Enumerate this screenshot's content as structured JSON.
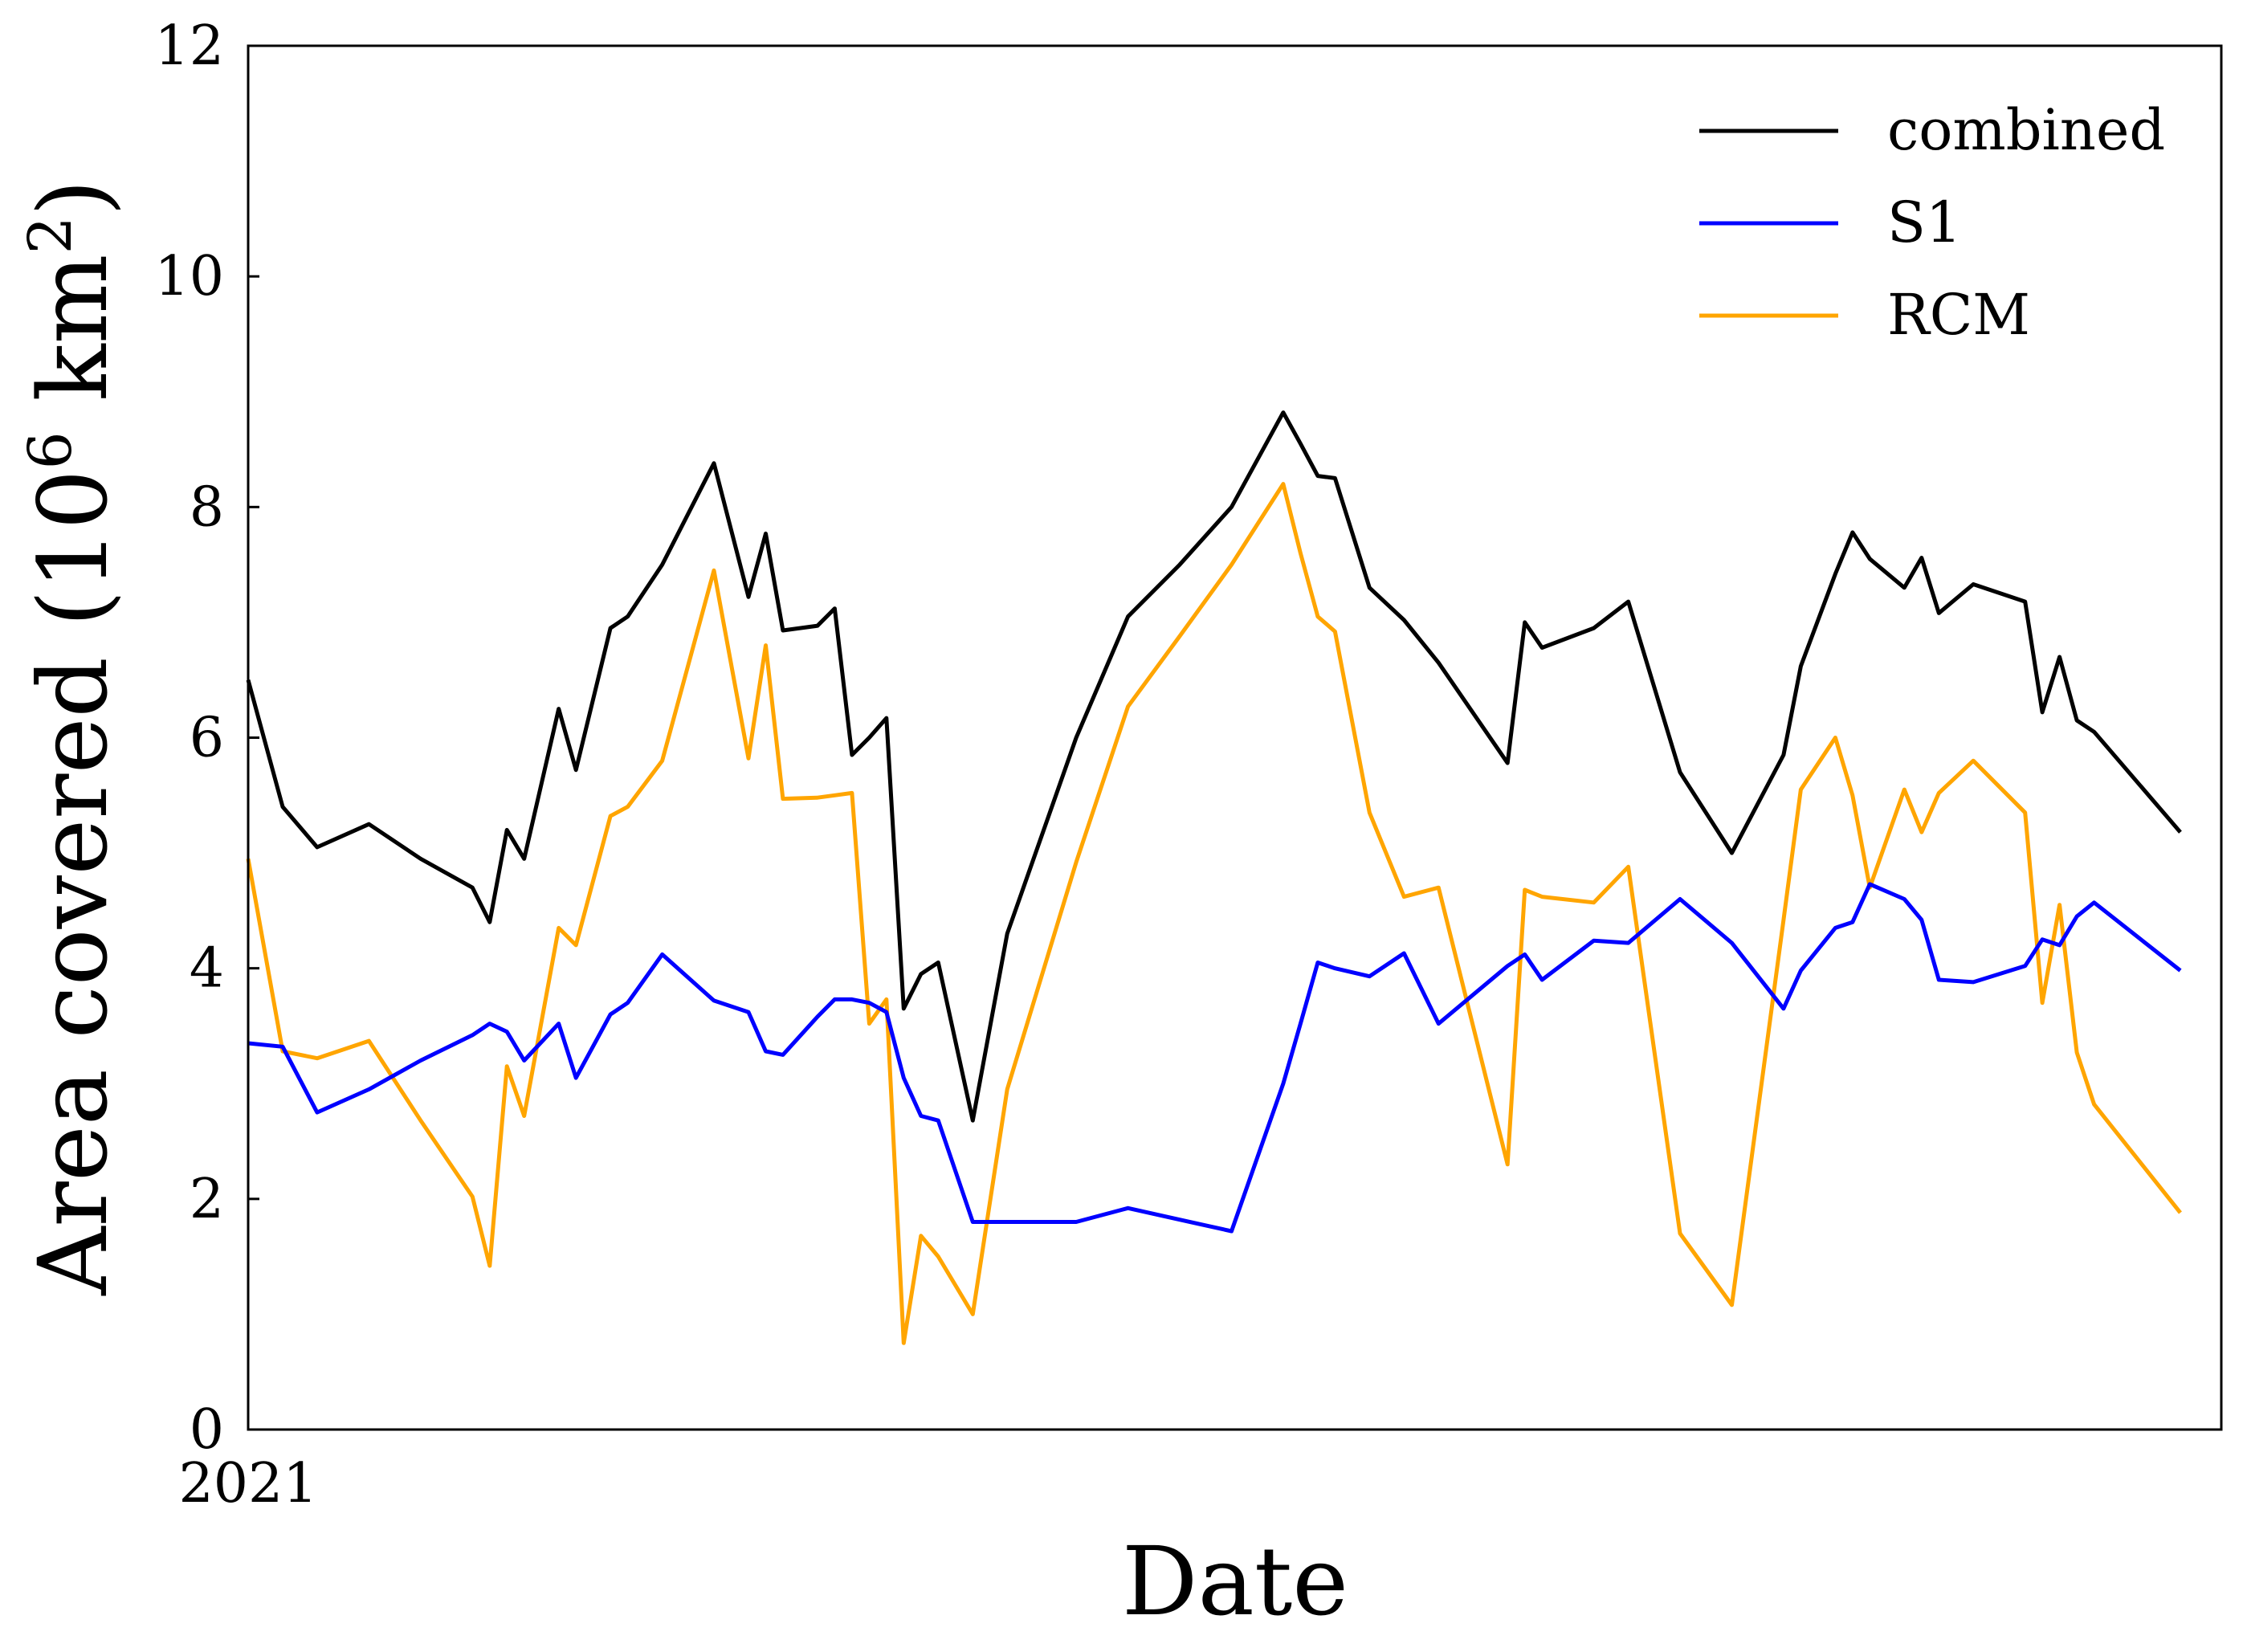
{
  "chart_data": {
    "type": "line",
    "xlabel": "Date",
    "ylabel": "Area covered (10",
    "ylabel_sup1": "6",
    "ylabel_mid": " km",
    "ylabel_sup2": "2",
    "ylabel_end": ")",
    "ylim": [
      0,
      12
    ],
    "yticks": [
      "0",
      "2",
      "4",
      "6",
      "8",
      "10",
      "12"
    ],
    "xtick_label": "2021",
    "grid": false,
    "legend_position": "top-right",
    "x": [
      0,
      2,
      4,
      7,
      10,
      13,
      14,
      15,
      16,
      18,
      19,
      21,
      22,
      24,
      27,
      29,
      30,
      31,
      33,
      34,
      35,
      36,
      37,
      38,
      39,
      40,
      42,
      44,
      48,
      51,
      54,
      57,
      60,
      61,
      62,
      63,
      65,
      67,
      69,
      73,
      74,
      75,
      78,
      80,
      83,
      86,
      89,
      90,
      92,
      93,
      94,
      96,
      97,
      98,
      100,
      103,
      104,
      105,
      106,
      107,
      112
    ],
    "series": [
      {
        "name": "combined",
        "color": "#000000",
        "values": [
          6.5,
          5.4,
          5.05,
          5.25,
          4.95,
          4.7,
          4.4,
          5.2,
          4.95,
          6.25,
          5.72,
          6.95,
          7.05,
          7.5,
          8.38,
          7.22,
          7.77,
          6.93,
          6.97,
          7.12,
          5.85,
          6.0,
          6.17,
          3.65,
          3.95,
          4.05,
          2.68,
          4.3,
          6.0,
          7.05,
          7.5,
          8.0,
          8.82,
          8.55,
          8.27,
          8.25,
          7.3,
          7.02,
          6.65,
          5.78,
          7.0,
          6.78,
          6.95,
          7.18,
          5.7,
          5.0,
          5.85,
          6.62,
          7.42,
          7.78,
          7.55,
          7.3,
          7.56,
          7.08,
          7.33,
          7.18,
          6.22,
          6.7,
          6.15,
          6.05,
          5.18
        ]
      },
      {
        "name": "S1",
        "color": "#0000ff",
        "values": [
          3.35,
          3.32,
          2.75,
          2.95,
          3.2,
          3.42,
          3.52,
          3.45,
          3.2,
          3.52,
          3.05,
          3.6,
          3.7,
          4.12,
          3.72,
          3.62,
          3.28,
          3.25,
          3.58,
          3.73,
          3.73,
          3.7,
          3.62,
          3.05,
          2.72,
          2.68,
          1.8,
          1.8,
          1.8,
          1.92,
          1.82,
          1.72,
          3.0,
          3.52,
          4.05,
          4.0,
          3.93,
          4.13,
          3.52,
          4.02,
          4.12,
          3.9,
          4.24,
          4.22,
          4.6,
          4.22,
          3.65,
          3.98,
          4.35,
          4.4,
          4.73,
          4.6,
          4.42,
          3.9,
          3.88,
          4.02,
          4.25,
          4.2,
          4.45,
          4.57,
          3.98
        ]
      },
      {
        "name": "RCM",
        "color": "#ffa500",
        "values": [
          4.95,
          3.28,
          3.22,
          3.37,
          2.68,
          2.02,
          1.42,
          3.15,
          2.72,
          4.35,
          4.2,
          5.32,
          5.4,
          5.8,
          7.45,
          5.82,
          6.8,
          5.47,
          5.48,
          5.5,
          5.52,
          3.52,
          3.73,
          0.75,
          1.68,
          1.5,
          1.0,
          2.95,
          4.92,
          6.27,
          6.88,
          7.5,
          8.2,
          7.6,
          7.05,
          6.92,
          5.35,
          4.62,
          4.7,
          2.3,
          4.68,
          4.62,
          4.57,
          4.88,
          1.7,
          1.08,
          4.42,
          5.55,
          6.0,
          5.5,
          4.7,
          5.55,
          5.18,
          5.52,
          5.8,
          5.35,
          3.7,
          4.55,
          3.27,
          2.82,
          1.88
        ]
      }
    ]
  }
}
